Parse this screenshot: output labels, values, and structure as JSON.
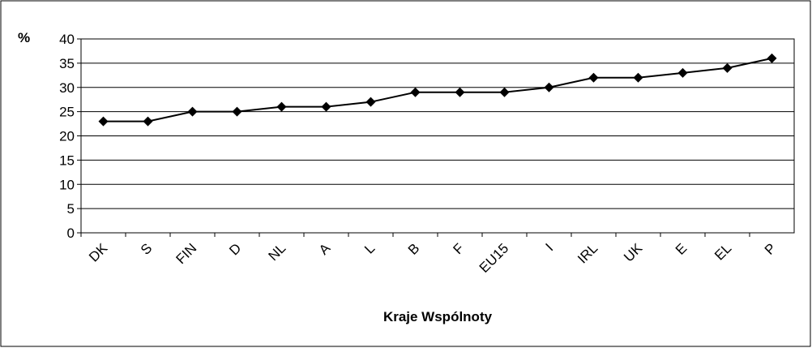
{
  "chart_data": {
    "type": "line",
    "ylabel": "%",
    "xlabel": "Kraje Wspólnoty",
    "categories": [
      "DK",
      "S",
      "FIN",
      "D",
      "NL",
      "A",
      "L",
      "B",
      "F",
      "EU15",
      "I",
      "IRL",
      "UK",
      "E",
      "EL",
      "P"
    ],
    "values": [
      23,
      23,
      25,
      25,
      26,
      26,
      27,
      29,
      29,
      29,
      30,
      32,
      32,
      33,
      34,
      36
    ],
    "color": "#000000",
    "ylim": [
      0,
      40
    ],
    "yticks": [
      0,
      5,
      10,
      15,
      20,
      25,
      30,
      35,
      40
    ],
    "grid": true
  }
}
